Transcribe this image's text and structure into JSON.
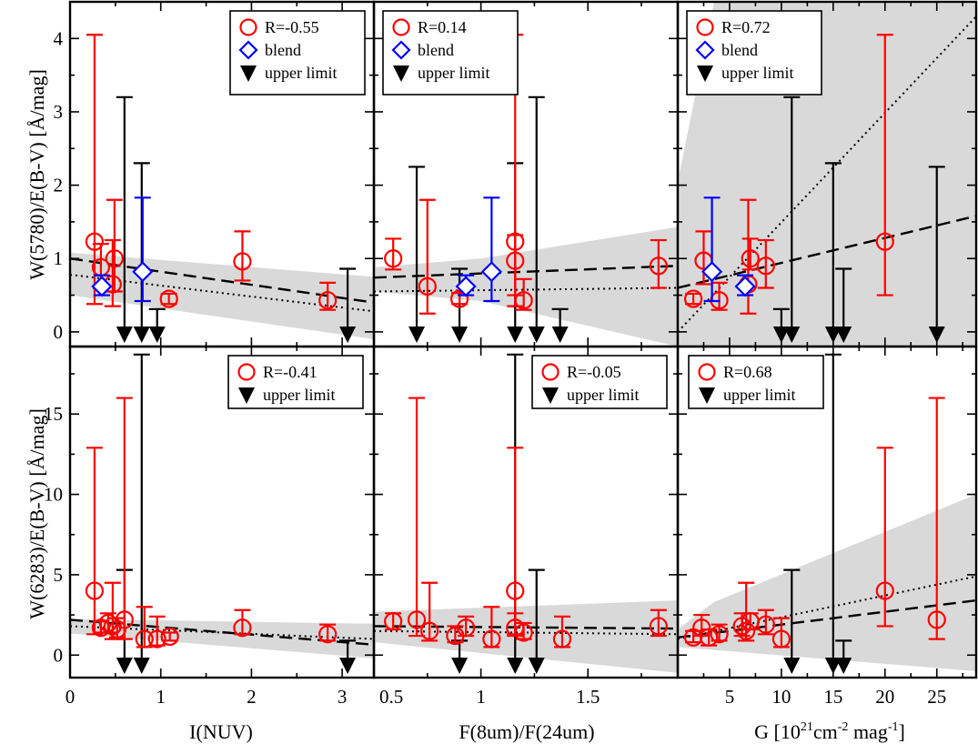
{
  "figure": {
    "ylabels": [
      "W(5780)/E(B-V) [Å/mag]",
      "W(6283)/E(B-V) [Å/mag]"
    ],
    "xlabels": [
      "I(NUV)",
      "F(8um)/F(24um)",
      ""
    ],
    "xlabel_g": {
      "main": "G [10",
      "exp1": "21",
      "mid": "cm",
      "exp2": "-2",
      "tail": " mag",
      "exp3": "-1",
      "end": "]"
    }
  },
  "colors": {
    "detection": "#ff0000",
    "blend": "#0000ff",
    "upper_limit": "#000000",
    "band": "#d9d9d9"
  },
  "chart_data": [
    {
      "type": "scatter",
      "panel": "top-left",
      "xlim": [
        0,
        3.35
      ],
      "ylim": [
        -0.2,
        4.5
      ],
      "xticks": [],
      "yticks": [
        0,
        1,
        2,
        3,
        4
      ],
      "grid": false,
      "legend_position": "top-right",
      "legend": [
        "R=-0.55",
        "blend",
        "upper limit"
      ],
      "detections": [
        {
          "x": 0.27,
          "y": 1.23,
          "lo": 0.38,
          "hi": 4.05
        },
        {
          "x": 0.34,
          "y": 0.88,
          "lo": 0.6,
          "hi": 1.2
        },
        {
          "x": 0.47,
          "y": 0.65,
          "lo": 0.35,
          "hi": 1.25
        },
        {
          "x": 0.49,
          "y": 1.0,
          "lo": 0.55,
          "hi": 1.8
        },
        {
          "x": 1.09,
          "y": 0.45,
          "lo": 0.38,
          "hi": 0.52
        },
        {
          "x": 1.9,
          "y": 0.96,
          "lo": 0.7,
          "hi": 1.37
        },
        {
          "x": 2.84,
          "y": 0.43,
          "lo": 0.3,
          "hi": 0.67
        }
      ],
      "blends": [
        {
          "x": 0.35,
          "y": 0.62,
          "lo": 0.5,
          "hi": 0.77
        },
        {
          "x": 0.8,
          "y": 0.82,
          "lo": 0.42,
          "hi": 1.83
        }
      ],
      "upper_limits": [
        {
          "x": 0.6,
          "y": 3.2
        },
        {
          "x": 0.79,
          "y": 2.3
        },
        {
          "x": 0.96,
          "y": 0.31
        },
        {
          "x": 3.06,
          "y": 0.86
        }
      ],
      "fit": {
        "x0": 0,
        "y0": 1.0,
        "x1": 3.35,
        "y1": 0.4
      },
      "alt_fit": {
        "x0": 0,
        "y0": 0.78,
        "x1": 3.35,
        "y1": 0.28
      },
      "band": {
        "upper": [
          [
            0,
            1.08
          ],
          [
            3.35,
            0.75
          ]
        ],
        "lower": [
          [
            0,
            0.5
          ],
          [
            3.35,
            -0.1
          ]
        ]
      }
    },
    {
      "type": "scatter",
      "panel": "top-middle",
      "xlim": [
        0.5,
        1.92
      ],
      "ylim": [
        -0.2,
        4.5
      ],
      "xticks": [],
      "yticks": [],
      "grid": false,
      "legend_position": "top-left",
      "legend": [
        "R=0.14",
        "blend",
        "upper limit"
      ],
      "detections": [
        {
          "x": 0.59,
          "y": 1.0,
          "lo": 0.85,
          "hi": 1.27
        },
        {
          "x": 0.75,
          "y": 0.62,
          "lo": 0.25,
          "hi": 1.8
        },
        {
          "x": 0.9,
          "y": 0.45,
          "lo": 0.38,
          "hi": 0.53
        },
        {
          "x": 1.16,
          "y": 0.97,
          "lo": 0.5,
          "hi": 1.32
        },
        {
          "x": 1.16,
          "y": 1.23,
          "lo": 0.35,
          "hi": 4.05
        },
        {
          "x": 1.2,
          "y": 0.43,
          "lo": 0.3,
          "hi": 0.72
        },
        {
          "x": 1.83,
          "y": 0.9,
          "lo": 0.6,
          "hi": 1.25
        }
      ],
      "blends": [
        {
          "x": 0.93,
          "y": 0.62,
          "lo": 0.5,
          "hi": 0.77
        },
        {
          "x": 1.05,
          "y": 0.82,
          "lo": 0.42,
          "hi": 1.83
        }
      ],
      "upper_limits": [
        {
          "x": 0.7,
          "y": 2.25
        },
        {
          "x": 0.9,
          "y": 0.86
        },
        {
          "x": 1.16,
          "y": 2.3
        },
        {
          "x": 1.26,
          "y": 3.2
        },
        {
          "x": 1.37,
          "y": 0.31
        }
      ],
      "fit": {
        "x0": 0.5,
        "y0": 0.74,
        "x1": 1.92,
        "y1": 0.9
      },
      "alt_fit": {
        "x0": 0.5,
        "y0": 0.55,
        "x1": 1.92,
        "y1": 0.6
      },
      "band": {
        "upper": [
          [
            0.5,
            0.88
          ],
          [
            1.0,
            1.0
          ],
          [
            1.92,
            1.43
          ]
        ],
        "lower": [
          [
            0.5,
            0.55
          ],
          [
            1.0,
            0.42
          ],
          [
            1.92,
            -0.2
          ]
        ]
      }
    },
    {
      "type": "scatter",
      "panel": "top-right",
      "xlim": [
        0,
        28.8
      ],
      "ylim": [
        -0.2,
        4.5
      ],
      "xticks": [],
      "yticks": [],
      "grid": false,
      "legend_position": "top-left",
      "legend": [
        "R=0.72",
        "blend",
        "upper limit"
      ],
      "detections": [
        {
          "x": 1.5,
          "y": 0.45,
          "lo": 0.38,
          "hi": 0.52
        },
        {
          "x": 2.5,
          "y": 0.97,
          "lo": 0.65,
          "hi": 1.37
        },
        {
          "x": 4.0,
          "y": 0.43,
          "lo": 0.3,
          "hi": 0.67
        },
        {
          "x": 6.8,
          "y": 0.65,
          "lo": 0.25,
          "hi": 1.8
        },
        {
          "x": 7.0,
          "y": 1.0,
          "lo": 0.85,
          "hi": 1.27
        },
        {
          "x": 8.5,
          "y": 0.9,
          "lo": 0.6,
          "hi": 1.25
        },
        {
          "x": 20,
          "y": 1.23,
          "lo": 0.5,
          "hi": 4.05
        }
      ],
      "blends": [
        {
          "x": 3.3,
          "y": 0.82,
          "lo": 0.42,
          "hi": 1.83
        },
        {
          "x": 6.5,
          "y": 0.62,
          "lo": 0.5,
          "hi": 0.77
        }
      ],
      "upper_limits": [
        {
          "x": 10,
          "y": 0.31
        },
        {
          "x": 11,
          "y": 3.2
        },
        {
          "x": 15,
          "y": 2.3
        },
        {
          "x": 16,
          "y": 0.86
        },
        {
          "x": 25,
          "y": 2.25
        }
      ],
      "fit": {
        "x0": 0,
        "y0": 0.6,
        "x1": 28.8,
        "y1": 1.58
      },
      "alt_fit": {
        "x0": 0,
        "y0": 0.0,
        "x1": 28.8,
        "y1": 4.3
      },
      "band": {
        "upper": [
          [
            0,
            2.05
          ],
          [
            3.5,
            4.5
          ],
          [
            28.8,
            4.5
          ]
        ],
        "lower": [
          [
            0,
            -0.2
          ],
          [
            28.8,
            -0.2
          ]
        ]
      }
    },
    {
      "type": "scatter",
      "panel": "bottom-left",
      "xlim": [
        0,
        3.35
      ],
      "ylim": [
        -1.4,
        19.2
      ],
      "xticks": [
        0,
        1,
        2,
        3
      ],
      "yticks": [
        0,
        5,
        10,
        15
      ],
      "grid": false,
      "legend_position": "top-right",
      "legend": [
        "R=-0.41",
        "upper limit"
      ],
      "detections": [
        {
          "x": 0.27,
          "y": 4.0,
          "lo": 1.3,
          "hi": 12.9
        },
        {
          "x": 0.34,
          "y": 1.7,
          "lo": 1.4,
          "hi": 2.1
        },
        {
          "x": 0.42,
          "y": 2.0,
          "lo": 1.4,
          "hi": 2.6
        },
        {
          "x": 0.47,
          "y": 1.8,
          "lo": 1.0,
          "hi": 4.5
        },
        {
          "x": 0.52,
          "y": 1.6,
          "lo": 1.1,
          "hi": 2.3
        },
        {
          "x": 0.6,
          "y": 2.2,
          "lo": 1.0,
          "hi": 16.0
        },
        {
          "x": 0.82,
          "y": 1.0,
          "lo": 0.5,
          "hi": 3.0
        },
        {
          "x": 0.96,
          "y": 1.0,
          "lo": 0.6,
          "hi": 2.4
        },
        {
          "x": 1.1,
          "y": 1.15,
          "lo": 0.9,
          "hi": 1.4
        },
        {
          "x": 1.9,
          "y": 1.7,
          "lo": 1.3,
          "hi": 2.8
        },
        {
          "x": 2.84,
          "y": 1.3,
          "lo": 0.9,
          "hi": 1.9
        }
      ],
      "blends": [],
      "upper_limits": [
        {
          "x": 0.6,
          "y": 5.3
        },
        {
          "x": 0.79,
          "y": 18.7
        },
        {
          "x": 3.06,
          "y": 0.9
        }
      ],
      "fit": {
        "x0": 0,
        "y0": 2.2,
        "x1": 3.35,
        "y1": 0.65
      },
      "alt_fit": {
        "x0": 0,
        "y0": 1.8,
        "x1": 3.35,
        "y1": 1.0
      },
      "band": {
        "upper": [
          [
            0,
            2.25
          ],
          [
            3.35,
            1.95
          ]
        ],
        "lower": [
          [
            0,
            1.35
          ],
          [
            3.35,
            -0.2
          ]
        ]
      }
    },
    {
      "type": "scatter",
      "panel": "bottom-middle",
      "xlim": [
        0.5,
        1.92
      ],
      "ylim": [
        -1.4,
        19.2
      ],
      "xticks": [
        0.5,
        1,
        1.5
      ],
      "yticks": [],
      "grid": false,
      "legend_position": "top-right",
      "legend": [
        "R=-0.05",
        "upper limit"
      ],
      "detections": [
        {
          "x": 0.59,
          "y": 2.1,
          "lo": 1.6,
          "hi": 2.6
        },
        {
          "x": 0.7,
          "y": 2.2,
          "lo": 1.2,
          "hi": 16.0
        },
        {
          "x": 0.76,
          "y": 1.5,
          "lo": 0.9,
          "hi": 4.5
        },
        {
          "x": 0.88,
          "y": 1.2,
          "lo": 0.8,
          "hi": 1.8
        },
        {
          "x": 0.93,
          "y": 1.7,
          "lo": 1.2,
          "hi": 2.4
        },
        {
          "x": 1.05,
          "y": 1.0,
          "lo": 0.5,
          "hi": 3.0
        },
        {
          "x": 1.16,
          "y": 1.7,
          "lo": 1.2,
          "hi": 2.6
        },
        {
          "x": 1.16,
          "y": 4.0,
          "lo": 1.3,
          "hi": 12.9
        },
        {
          "x": 1.2,
          "y": 1.4,
          "lo": 1.0,
          "hi": 2.0
        },
        {
          "x": 1.38,
          "y": 1.0,
          "lo": 0.5,
          "hi": 2.4
        },
        {
          "x": 1.83,
          "y": 1.8,
          "lo": 1.2,
          "hi": 2.8
        }
      ],
      "blends": [],
      "upper_limits": [
        {
          "x": 0.9,
          "y": 0.9
        },
        {
          "x": 1.16,
          "y": 18.7
        },
        {
          "x": 1.26,
          "y": 5.3
        }
      ],
      "fit": {
        "x0": 0.5,
        "y0": 1.8,
        "x1": 1.92,
        "y1": 1.65
      },
      "alt_fit": {
        "x0": 0.5,
        "y0": 1.5,
        "x1": 1.92,
        "y1": 1.3
      },
      "band": {
        "upper": [
          [
            0.5,
            2.7
          ],
          [
            1.92,
            3.4
          ]
        ],
        "lower": [
          [
            0.5,
            0.8
          ],
          [
            1.92,
            -1.1
          ]
        ]
      }
    },
    {
      "type": "scatter",
      "panel": "bottom-right",
      "xlim": [
        0,
        28.8
      ],
      "ylim": [
        -1.4,
        19.2
      ],
      "xticks": [
        5,
        10,
        15,
        20,
        25
      ],
      "yticks": [],
      "grid": false,
      "legend_position": "top-left",
      "legend": [
        "R=0.68",
        "upper limit"
      ],
      "detections": [
        {
          "x": 1.5,
          "y": 1.1,
          "lo": 0.8,
          "hi": 1.5
        },
        {
          "x": 2.3,
          "y": 1.7,
          "lo": 1.2,
          "hi": 2.5
        },
        {
          "x": 3.0,
          "y": 1.1,
          "lo": 0.6,
          "hi": 1.6
        },
        {
          "x": 4.0,
          "y": 1.3,
          "lo": 0.9,
          "hi": 1.9
        },
        {
          "x": 6.2,
          "y": 1.8,
          "lo": 1.2,
          "hi": 2.6
        },
        {
          "x": 6.6,
          "y": 1.5,
          "lo": 0.9,
          "hi": 4.5
        },
        {
          "x": 7.0,
          "y": 2.1,
          "lo": 1.6,
          "hi": 2.6
        },
        {
          "x": 8.5,
          "y": 1.9,
          "lo": 1.3,
          "hi": 2.8
        },
        {
          "x": 10,
          "y": 1.0,
          "lo": 0.5,
          "hi": 2.3
        },
        {
          "x": 20,
          "y": 4.0,
          "lo": 1.8,
          "hi": 12.9
        },
        {
          "x": 25,
          "y": 2.2,
          "lo": 1.0,
          "hi": 16.0
        }
      ],
      "blends": [],
      "upper_limits": [
        {
          "x": 11,
          "y": 5.3
        },
        {
          "x": 15,
          "y": 18.7
        },
        {
          "x": 16,
          "y": 0.9
        }
      ],
      "fit": {
        "x0": 0,
        "y0": 1.1,
        "x1": 28.8,
        "y1": 3.4
      },
      "alt_fit": {
        "x0": 0,
        "y0": 1.0,
        "x1": 28.8,
        "y1": 4.9
      },
      "band": {
        "upper": [
          [
            0,
            1.6
          ],
          [
            3.5,
            3.3
          ],
          [
            28.8,
            10.0
          ]
        ],
        "lower": [
          [
            0,
            0.5
          ],
          [
            28.8,
            -1.0
          ]
        ]
      }
    }
  ]
}
